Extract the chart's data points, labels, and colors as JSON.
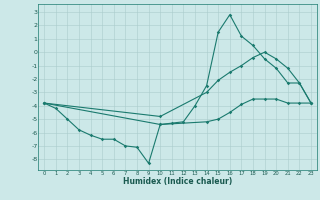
{
  "xlabel": "Humidex (Indice chaleur)",
  "bg_color": "#cce8e8",
  "grid_color": "#aacccc",
  "line_color": "#1a7a6e",
  "xlim": [
    -0.5,
    23.5
  ],
  "ylim": [
    -8.8,
    3.6
  ],
  "yticks": [
    3,
    2,
    1,
    0,
    -1,
    -2,
    -3,
    -4,
    -5,
    -6,
    -7,
    -8
  ],
  "xticks": [
    0,
    1,
    2,
    3,
    4,
    5,
    6,
    7,
    8,
    9,
    10,
    11,
    12,
    13,
    14,
    15,
    16,
    17,
    18,
    19,
    20,
    21,
    22,
    23
  ],
  "line1_x": [
    0,
    1,
    2,
    3,
    4,
    5,
    6,
    7,
    8,
    9,
    10,
    11,
    12,
    13,
    14,
    15,
    16,
    17,
    18,
    19,
    20,
    21,
    22,
    23
  ],
  "line1_y": [
    -3.8,
    -4.2,
    -5.0,
    -5.8,
    -6.2,
    -6.5,
    -6.5,
    -7.0,
    -7.1,
    -8.3,
    -5.4,
    -5.3,
    -5.2,
    -4.0,
    -2.5,
    1.5,
    2.8,
    1.2,
    0.5,
    -0.5,
    -1.2,
    -2.3,
    -2.3,
    -3.8
  ],
  "line2_x": [
    0,
    10,
    14,
    15,
    16,
    17,
    18,
    19,
    20,
    21,
    22,
    23
  ],
  "line2_y": [
    -3.8,
    -4.8,
    -3.0,
    -2.1,
    -1.5,
    -1.0,
    -0.4,
    0.0,
    -0.5,
    -1.2,
    -2.3,
    -3.8
  ],
  "line3_x": [
    0,
    10,
    14,
    15,
    16,
    17,
    18,
    19,
    20,
    21,
    22,
    23
  ],
  "line3_y": [
    -3.8,
    -5.4,
    -5.2,
    -5.0,
    -4.5,
    -3.9,
    -3.5,
    -3.5,
    -3.5,
    -3.8,
    -3.8,
    -3.8
  ]
}
